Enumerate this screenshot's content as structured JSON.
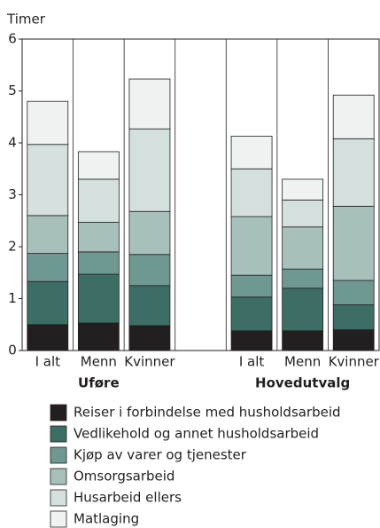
{
  "chart_data": {
    "type": "stacked_bar",
    "y_label": "Timer",
    "categories": [
      "I alt",
      "Menn",
      "Kvinner",
      null,
      "I alt",
      "Menn",
      "Kvinner"
    ],
    "group_labels": [
      "Uføre",
      "Hovedutvalg"
    ],
    "series": [
      {
        "name": "Reiser i forbindelse med husholdsarbeid",
        "color": "#231f20",
        "values": [
          0.5,
          0.53,
          0.48,
          null,
          0.38,
          0.38,
          0.4
        ]
      },
      {
        "name": "Vedlikehold og annet husholdsarbeid",
        "color": "#3d6e66",
        "values": [
          0.83,
          0.94,
          0.77,
          null,
          0.65,
          0.82,
          0.48
        ]
      },
      {
        "name": "Kjøp av varer og tjenester",
        "color": "#6f9892",
        "values": [
          0.54,
          0.43,
          0.6,
          null,
          0.42,
          0.37,
          0.47
        ]
      },
      {
        "name": "Omsorgsarbeid",
        "color": "#a7c0bb",
        "values": [
          0.73,
          0.57,
          0.83,
          null,
          1.13,
          0.81,
          1.43
        ]
      },
      {
        "name": "Husarbeid ellers",
        "color": "#d3e0de",
        "values": [
          1.37,
          0.83,
          1.59,
          null,
          0.92,
          0.52,
          1.3
        ]
      },
      {
        "name": "Matlaging",
        "color": "#eef3f2",
        "values": [
          0.83,
          0.53,
          0.96,
          null,
          0.63,
          0.4,
          0.84
        ]
      }
    ],
    "ylim": [
      0,
      6
    ],
    "yticks": [
      0,
      1,
      2,
      3,
      4,
      5,
      6
    ]
  }
}
